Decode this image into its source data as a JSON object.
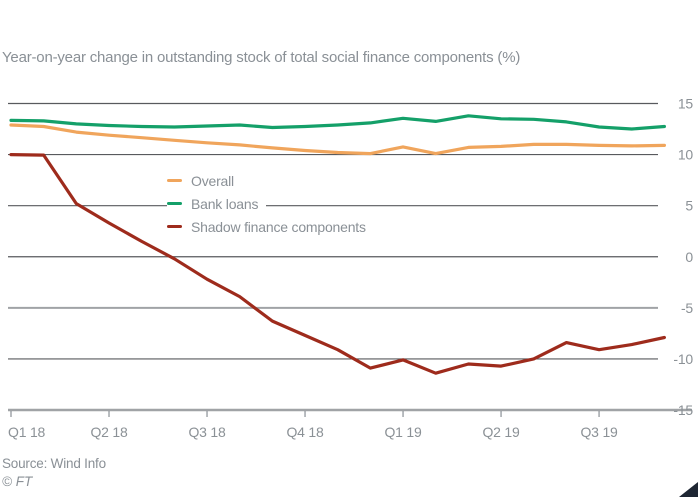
{
  "title": "Year-on-year change in outstanding stock of total social finance components (%)",
  "source": "Source: Wind Info",
  "copyright": "© FT",
  "colors": {
    "text": "#8a9096",
    "grid_dark": "#585a5e",
    "grid_light": "#a0a3a6",
    "tick": "#8a9096",
    "corner_triangle": "#1e2633"
  },
  "chart_data": {
    "type": "line",
    "title": "Year-on-year change in outstanding stock of total social finance components (%)",
    "xlabel": "",
    "ylabel": "",
    "ylim": [
      -15,
      15
    ],
    "y_ticks": [
      15,
      10,
      5,
      0,
      -5,
      -10,
      -15
    ],
    "grid": "horizontal",
    "legend_position": "inside-upper-left",
    "x_tick_labels": [
      "Q1 18",
      "Q2 18",
      "Q3 18",
      "Q4 18",
      "Q1 19",
      "Q2 19",
      "Q3 19"
    ],
    "x_tick_indices": [
      0,
      3,
      6,
      9,
      12,
      15,
      18
    ],
    "series": [
      {
        "name": "Overall",
        "color": "#F0A55C",
        "values": [
          12.9,
          12.75,
          12.2,
          11.9,
          11.65,
          11.4,
          11.15,
          10.95,
          10.65,
          10.4,
          10.2,
          10.1,
          10.75,
          10.1,
          10.7,
          10.8,
          11.0,
          11.0,
          10.9,
          10.85,
          10.9
        ]
      },
      {
        "name": "Bank loans",
        "color": "#14A069",
        "values": [
          13.35,
          13.3,
          13.0,
          12.85,
          12.75,
          12.7,
          12.8,
          12.9,
          12.65,
          12.75,
          12.9,
          13.1,
          13.55,
          13.25,
          13.8,
          13.5,
          13.45,
          13.2,
          12.7,
          12.5,
          12.75
        ]
      },
      {
        "name": "Shadow finance components",
        "color": "#9E2B1C",
        "values": [
          10.0,
          9.95,
          5.2,
          3.3,
          1.5,
          -0.2,
          -2.2,
          -3.9,
          -6.3,
          -7.7,
          -9.1,
          -10.9,
          -10.1,
          -11.4,
          -10.5,
          -10.7,
          -10.0,
          -8.4,
          -9.1,
          -8.6,
          -7.9
        ]
      }
    ]
  }
}
